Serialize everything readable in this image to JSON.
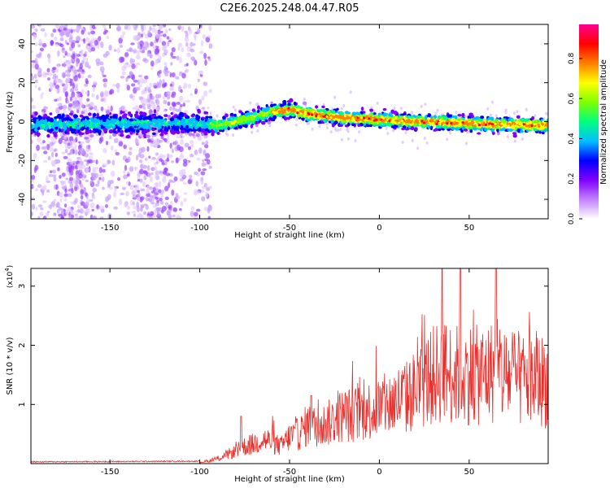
{
  "title": "C2E6.2025.248.04.47.R05",
  "chart_data": [
    {
      "type": "heatmap",
      "xlabel": "Height of straight line (km)",
      "ylabel": "Frequency (Hz)",
      "xlim": [
        -194,
        94
      ],
      "ylim": [
        -50,
        50
      ],
      "xticks": [
        -150,
        -100,
        -50,
        0,
        50
      ],
      "yticks": [
        -40,
        -20,
        0,
        20,
        40
      ],
      "colorbar": {
        "label": "Normalized spectral amplitude",
        "range": [
          0,
          0.97
        ],
        "ticks": [
          "0.0",
          "0.2",
          "0.4",
          "0.6",
          "0.8"
        ],
        "colors": [
          "#ffffff",
          "#c080ff",
          "#8000ff",
          "#0000ff",
          "#00c0ff",
          "#00ff80",
          "#80ff00",
          "#ffff00",
          "#ff8000",
          "#ff0000",
          "#ff0090"
        ]
      },
      "ridge": {
        "x": [
          -194,
          -150,
          -100,
          -90,
          -80,
          -70,
          -60,
          -50,
          -45,
          -40,
          -30,
          -20,
          0,
          20,
          50,
          94
        ],
        "frequency_hz": [
          -2,
          -1,
          -1,
          -2,
          0,
          2,
          5,
          6,
          5,
          4,
          3,
          2,
          1,
          0,
          -1,
          -2
        ]
      }
    },
    {
      "type": "line",
      "xlabel": "Height of straight line (km)",
      "ylabel": "SNR (10 * v/v)",
      "y_multiplier": "(x10",
      "y_exponent": "4",
      "y_multiplier_close": ")",
      "xlim": [
        -194,
        94
      ],
      "ylim": [
        0,
        3.3
      ],
      "xticks": [
        -150,
        -100,
        -50,
        0,
        50
      ],
      "yticks": [
        1,
        2,
        3
      ],
      "series": [
        {
          "name": "SNR",
          "color": "#e8302c",
          "x": [
            -194,
            -100,
            -95,
            -90,
            -85,
            -80,
            -75,
            -70,
            -65,
            -60,
            -55,
            -50,
            -45,
            -40,
            -35,
            -30,
            -25,
            -20,
            -15,
            -10,
            -5,
            0,
            5,
            10,
            15,
            20,
            25,
            30,
            35,
            40,
            45,
            50,
            55,
            60,
            65,
            70,
            75,
            80,
            85,
            90,
            94
          ],
          "envelope": [
            0.02,
            0.03,
            0.05,
            0.1,
            0.18,
            0.25,
            0.35,
            0.4,
            0.5,
            0.45,
            0.35,
            0.55,
            0.6,
            0.8,
            0.75,
            0.8,
            0.9,
            1.0,
            1.0,
            1.05,
            1.1,
            1.15,
            1.2,
            1.3,
            1.35,
            1.5,
            1.65,
            1.8,
            1.9,
            1.85,
            1.8,
            1.85,
            1.8,
            1.85,
            1.9,
            1.8,
            1.75,
            1.7,
            1.75,
            1.7,
            1.7
          ],
          "peaks": [
            {
              "x": -77,
              "y": 0.8
            },
            {
              "x": -38,
              "y": 1.15
            },
            {
              "x": 35,
              "y": 3.3
            },
            {
              "x": 45,
              "y": 3.3
            },
            {
              "x": 65,
              "y": 3.3
            }
          ]
        }
      ]
    }
  ]
}
